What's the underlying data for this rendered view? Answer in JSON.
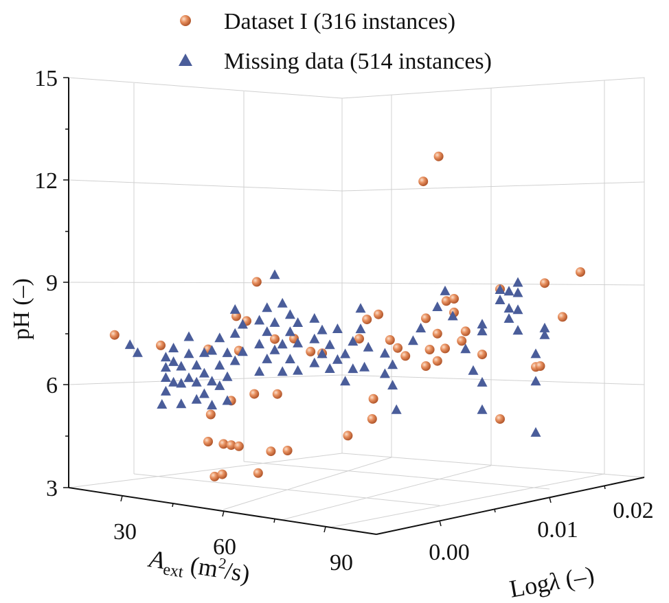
{
  "chart_data": {
    "type": "scatter3d",
    "title": "",
    "legend": {
      "placement": "top-center",
      "entries": [
        {
          "label": "Dataset I (316 instances)",
          "marker": "sphere",
          "color": "#e07a45"
        },
        {
          "label": "Missing data (514 instances)",
          "marker": "triangle",
          "color": "#4a5d9a"
        }
      ]
    },
    "axes": {
      "z": {
        "label": "pH (–)",
        "range": [
          3,
          15
        ],
        "ticks": [
          "3",
          "6",
          "9",
          "12",
          "15"
        ]
      },
      "a": {
        "label_main": "A",
        "label_sub": "ext",
        "label_unit_open": " (m",
        "label_sup": "2",
        "label_unit_close": "/s)",
        "range": [
          20,
          100
        ],
        "ticks": [
          "30",
          "60",
          "90"
        ]
      },
      "l": {
        "label_main": "Log",
        "label_italic": "λ",
        "label_tail": " (–)",
        "range": [
          -0.005,
          0.025
        ],
        "ticks": [
          "0.00",
          "0.01",
          "0.02"
        ]
      }
    },
    "series": [
      {
        "name": "Dataset I (316 instances)",
        "color": "#e07a45",
        "points": [
          [
            18,
            0.001,
            7.1
          ],
          [
            30,
            0.001,
            7.0
          ],
          [
            40,
            0.002,
            7.0
          ],
          [
            48,
            0.002,
            7.1
          ],
          [
            55,
            0.003,
            7.5
          ],
          [
            60,
            0.003,
            7.6
          ],
          [
            45,
            0.003,
            8.0
          ],
          [
            48,
            0.004,
            9.0
          ],
          [
            50,
            0.002,
            8.0
          ],
          [
            52,
            0.002,
            5.9
          ],
          [
            46,
            0.002,
            5.6
          ],
          [
            43,
            0.001,
            5.2
          ],
          [
            40,
            0.002,
            4.3
          ],
          [
            44,
            0.002,
            4.3
          ],
          [
            46,
            0.002,
            4.3
          ],
          [
            48,
            0.002,
            4.3
          ],
          [
            54,
            0.003,
            4.2
          ],
          [
            56,
            0.004,
            4.2
          ],
          [
            44,
            0.001,
            3.4
          ],
          [
            46,
            0.001,
            3.5
          ],
          [
            53,
            0.002,
            3.6
          ],
          [
            58,
            0.002,
            6.0
          ],
          [
            62,
            0.004,
            7.2
          ],
          [
            65,
            0.004,
            7.2
          ],
          [
            70,
            0.006,
            7.6
          ],
          [
            72,
            0.006,
            8.2
          ],
          [
            75,
            0.006,
            8.4
          ],
          [
            78,
            0.006,
            7.7
          ],
          [
            80,
            0.006,
            7.5
          ],
          [
            82,
            0.006,
            7.3
          ],
          [
            76,
            0.005,
            6.0
          ],
          [
            78,
            0.004,
            5.5
          ],
          [
            74,
            0.003,
            5.0
          ],
          [
            85,
            0.007,
            7.0
          ],
          [
            86,
            0.007,
            7.5
          ],
          [
            88,
            0.007,
            8.0
          ],
          [
            90,
            0.008,
            8.6
          ],
          [
            88,
            0.008,
            8.9
          ],
          [
            90,
            0.008,
            9.0
          ],
          [
            85,
            0.007,
            8.4
          ],
          [
            88,
            0.007,
            7.2
          ],
          [
            90,
            0.007,
            7.6
          ],
          [
            92,
            0.008,
            7.8
          ],
          [
            93,
            0.008,
            8.1
          ],
          [
            86,
            0.008,
            13.1
          ],
          [
            82,
            0.008,
            12.3
          ],
          [
            95,
            0.009,
            7.4
          ],
          [
            95,
            0.011,
            9.2
          ],
          [
            95,
            0.016,
            9.1
          ],
          [
            95,
            0.02,
            9.2
          ],
          [
            95,
            0.018,
            8.0
          ],
          [
            95,
            0.015,
            6.7
          ],
          [
            95,
            0.0155,
            6.7
          ],
          [
            95,
            0.011,
            5.4
          ]
        ]
      },
      {
        "name": "Missing data (514 instances)",
        "color": "#4a5d9a",
        "points": [
          [
            22,
            0.001,
            6.9
          ],
          [
            24,
            0.001,
            6.7
          ],
          [
            28,
            0.002,
            5.2
          ],
          [
            29,
            0.002,
            5.6
          ],
          [
            29,
            0.002,
            6.0
          ],
          [
            29,
            0.002,
            6.3
          ],
          [
            29,
            0.002,
            6.6
          ],
          [
            31,
            0.002,
            5.9
          ],
          [
            31,
            0.002,
            6.5
          ],
          [
            31,
            0.002,
            6.9
          ],
          [
            33,
            0.002,
            5.3
          ],
          [
            33,
            0.002,
            5.9
          ],
          [
            33,
            0.002,
            6.4
          ],
          [
            35,
            0.002,
            6.1
          ],
          [
            35,
            0.002,
            6.8
          ],
          [
            35,
            0.002,
            7.3
          ],
          [
            37,
            0.002,
            5.5
          ],
          [
            37,
            0.002,
            6.0
          ],
          [
            37,
            0.002,
            6.5
          ],
          [
            39,
            0.002,
            5.7
          ],
          [
            39,
            0.002,
            6.3
          ],
          [
            39,
            0.002,
            6.9
          ],
          [
            41,
            0.002,
            5.4
          ],
          [
            41,
            0.002,
            6.1
          ],
          [
            41,
            0.002,
            7.0
          ],
          [
            43,
            0.002,
            6.0
          ],
          [
            43,
            0.002,
            6.6
          ],
          [
            43,
            0.002,
            7.4
          ],
          [
            45,
            0.002,
            5.6
          ],
          [
            45,
            0.002,
            6.3
          ],
          [
            45,
            0.002,
            7.0
          ],
          [
            47,
            0.002,
            6.8
          ],
          [
            47,
            0.002,
            7.6
          ],
          [
            47,
            0.002,
            8.3
          ],
          [
            49,
            0.002,
            7.1
          ],
          [
            49,
            0.002,
            7.9
          ],
          [
            51,
            0.003,
            6.5
          ],
          [
            51,
            0.003,
            7.3
          ],
          [
            51,
            0.003,
            8.0
          ],
          [
            53,
            0.003,
            6.9
          ],
          [
            53,
            0.003,
            7.7
          ],
          [
            53,
            0.003,
            8.4
          ],
          [
            55,
            0.003,
            7.2
          ],
          [
            55,
            0.003,
            8.0
          ],
          [
            55,
            0.003,
            9.4
          ],
          [
            57,
            0.003,
            6.6
          ],
          [
            57,
            0.003,
            7.4
          ],
          [
            57,
            0.003,
            8.6
          ],
          [
            59,
            0.003,
            7.0
          ],
          [
            59,
            0.003,
            7.8
          ],
          [
            59,
            0.003,
            8.3
          ],
          [
            61,
            0.003,
            6.7
          ],
          [
            61,
            0.003,
            7.5
          ],
          [
            61,
            0.003,
            8.1
          ],
          [
            63,
            0.004,
            6.9
          ],
          [
            63,
            0.004,
            7.6
          ],
          [
            63,
            0.004,
            8.2
          ],
          [
            65,
            0.004,
            7.2
          ],
          [
            65,
            0.004,
            7.9
          ],
          [
            67,
            0.004,
            6.8
          ],
          [
            67,
            0.004,
            7.5
          ],
          [
            69,
            0.004,
            7.1
          ],
          [
            69,
            0.004,
            8.0
          ],
          [
            71,
            0.004,
            6.5
          ],
          [
            71,
            0.004,
            7.3
          ],
          [
            73,
            0.004,
            6.9
          ],
          [
            73,
            0.004,
            7.7
          ],
          [
            75,
            0.004,
            8.1
          ],
          [
            75,
            0.004,
            8.7
          ],
          [
            76,
            0.004,
            7.0
          ],
          [
            77,
            0.004,
            7.6
          ],
          [
            79,
            0.005,
            6.8
          ],
          [
            79,
            0.005,
            7.4
          ],
          [
            81,
            0.005,
            6.5
          ],
          [
            81,
            0.005,
            7.1
          ],
          [
            82,
            0.005,
            5.8
          ],
          [
            84,
            0.006,
            7.8
          ],
          [
            86,
            0.006,
            8.2
          ],
          [
            88,
            0.007,
            8.8
          ],
          [
            90,
            0.007,
            9.3
          ],
          [
            92,
            0.007,
            8.6
          ],
          [
            93,
            0.008,
            7.6
          ],
          [
            95,
            0.008,
            7.0
          ],
          [
            95,
            0.009,
            6.6
          ],
          [
            95,
            0.009,
            5.8
          ],
          [
            95,
            0.009,
            8.1
          ],
          [
            95,
            0.009,
            8.3
          ],
          [
            95,
            0.011,
            9.2
          ],
          [
            95,
            0.011,
            8.9
          ],
          [
            95,
            0.012,
            9.1
          ],
          [
            95,
            0.012,
            8.6
          ],
          [
            95,
            0.012,
            8.3
          ],
          [
            95,
            0.013,
            7.9
          ],
          [
            95,
            0.013,
            9.3
          ],
          [
            95,
            0.013,
            9.0
          ],
          [
            95,
            0.013,
            8.5
          ],
          [
            95,
            0.015,
            7.1
          ],
          [
            95,
            0.015,
            6.3
          ],
          [
            95,
            0.015,
            4.8
          ],
          [
            95,
            0.016,
            7.6
          ],
          [
            95,
            0.016,
            7.8
          ]
        ]
      }
    ]
  }
}
